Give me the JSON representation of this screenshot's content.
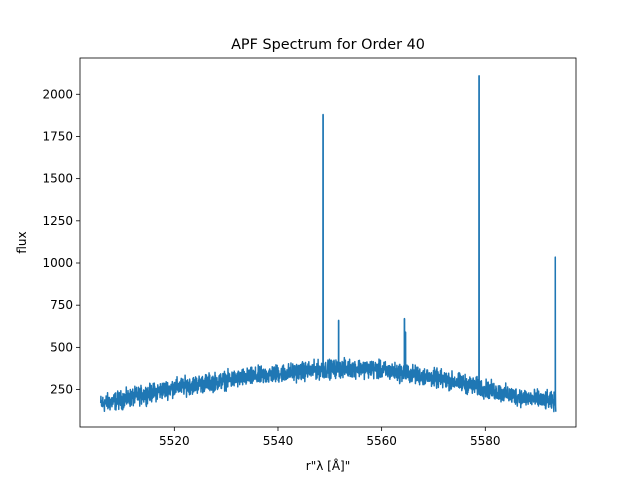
{
  "chart_data": {
    "type": "line",
    "title": "APF Spectrum for Order 40",
    "xlabel": "r\"λ [Å]\"",
    "ylabel": "flux",
    "xlim": [
      5501.8,
      5597.5
    ],
    "ylim": [
      28,
      2215
    ],
    "x_ticks": [
      5520,
      5540,
      5560,
      5580
    ],
    "y_ticks": [
      250,
      500,
      750,
      1000,
      1250,
      1500,
      1750,
      2000
    ],
    "grid": false,
    "line_color": "#1f77b4",
    "x_range": [
      5505.8,
      5593.6
    ],
    "continuum": [
      [
        5505.8,
        165
      ],
      [
        5510,
        190
      ],
      [
        5520,
        262
      ],
      [
        5530,
        305
      ],
      [
        5540,
        345
      ],
      [
        5550,
        372
      ],
      [
        5556,
        378
      ],
      [
        5565,
        345
      ],
      [
        5575,
        292
      ],
      [
        5585,
        215
      ],
      [
        5593.6,
        175
      ]
    ],
    "noise_amplitude": 40,
    "spikes": [
      {
        "x": 5548.7,
        "y": 1880
      },
      {
        "x": 5551.7,
        "y": 660
      },
      {
        "x": 5564.4,
        "y": 670
      },
      {
        "x": 5564.6,
        "y": 590
      },
      {
        "x": 5578.8,
        "y": 2110
      },
      {
        "x": 5593.5,
        "y": 1035
      }
    ]
  }
}
